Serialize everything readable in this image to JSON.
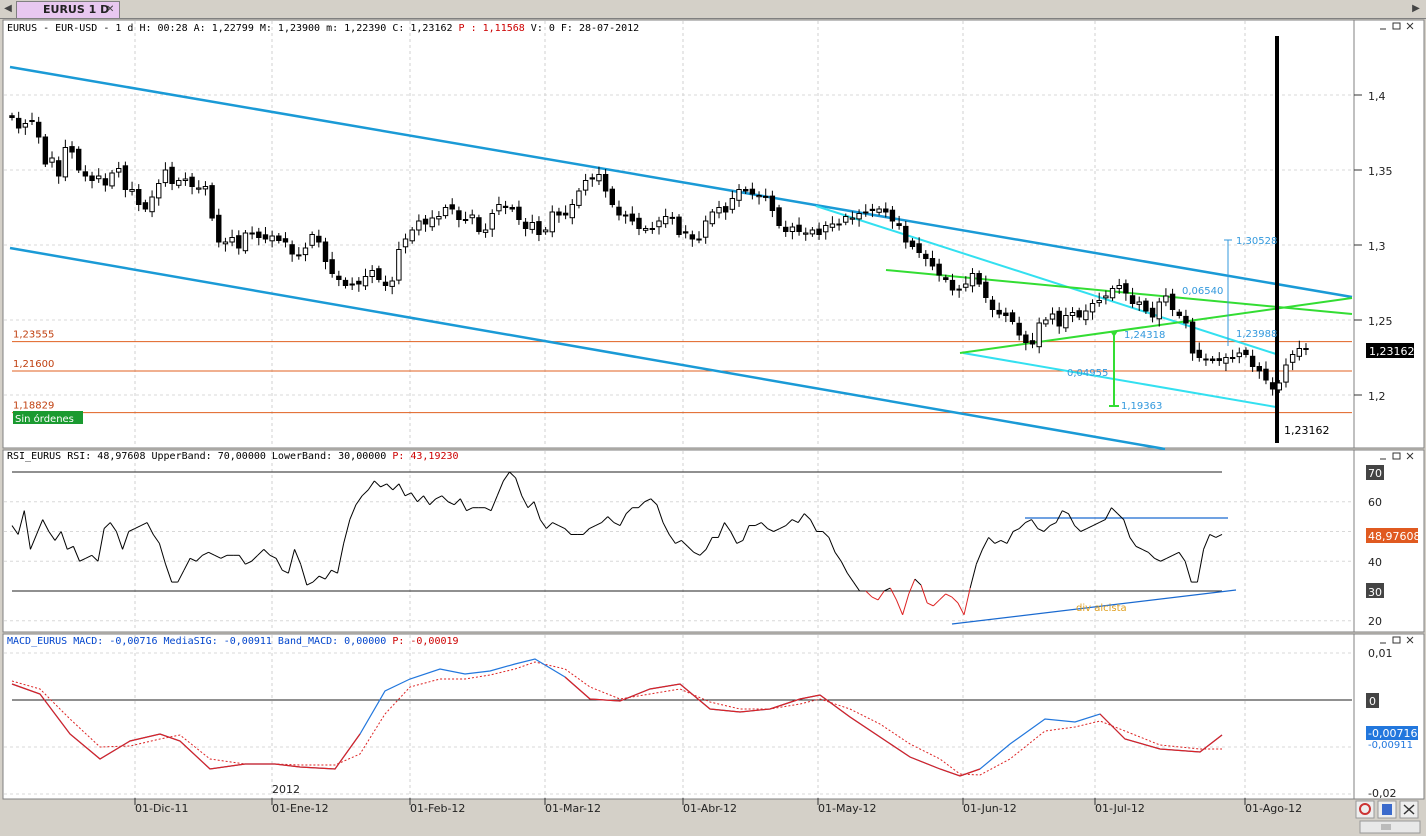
{
  "tab": {
    "nav_left": "◀",
    "nav_right": "▶",
    "title": "EURUS 1 D",
    "close": "✕"
  },
  "price_header": [
    {
      "text": "EURUS - EUR-USD -  1 d H: 00:28 A: 1,22799 M: 1,23900 m: 1,22390 C: 1,23162 ",
      "color": "#000000"
    },
    {
      "text": "P : 1,11568 ",
      "color": "#cc0000"
    },
    {
      "text": "V: 0 F: 28-07-2012",
      "color": "#000000"
    }
  ],
  "rsi_header": [
    {
      "text": "RSI_EURUS RSI: 48,97608 UpperBand: 70,00000 LowerBand: 30,00000 ",
      "color": "#000000"
    },
    {
      "text": "P: 43,19230",
      "color": "#cc0000"
    }
  ],
  "macd_header": [
    {
      "text": "MACD_EURUS MACD: -0,00716 MediaSIG: -0,00911 Band_MACD: 0,00000 ",
      "color": "#0044cc"
    },
    {
      "text": "P: -0,00019",
      "color": "#cc0000"
    }
  ],
  "price_axis": [
    "1,4",
    "1,35",
    "1,3",
    "1,25",
    "1,2"
  ],
  "rsi_axis": [
    "70",
    "60",
    "50",
    "40",
    "30",
    "20"
  ],
  "macd_axis": [
    "0,01",
    "0",
    "-0,01",
    "-0,02"
  ],
  "current_price_label": "1,23162",
  "current_price_bottom_label": "1,23162",
  "rsi_current_label": "48,97608",
  "macd_current_label": "-0,00716",
  "macd_sig_label": "-0,00911",
  "hlines": [
    {
      "label": "1,23555",
      "value": 1.23555
    },
    {
      "label": "1,21600",
      "value": 1.216
    },
    {
      "label": "1,18829",
      "value": 1.18829
    }
  ],
  "sin_ordenes": "Sin órdenes",
  "annotations": {
    "target_up": "1,30528",
    "dist_up": "0,06540",
    "level_mid": "1,23988",
    "level_green": "1,24318",
    "dist_down": "0,04955",
    "target_down": "1,19363",
    "divergence": "div alcista"
  },
  "year_label": "2012",
  "x_ticks": [
    "01-Dic-11",
    "01-Ene-12",
    "01-Feb-12",
    "01-Mar-12",
    "01-Abr-12",
    "01-May-12",
    "01-Jun-12",
    "01-Jul-12",
    "01-Ago-12"
  ],
  "colors": {
    "channel": "#1a9ad6",
    "cyan": "#33e0f0",
    "green": "#33dd33",
    "orange_line": "#e06020",
    "rsi_up": "#000000",
    "rsi_down": "#dd2222",
    "macd": "#2277dd",
    "signal": "#dd2222"
  },
  "chart_data": [
    {
      "type": "candlestick",
      "title": "EURUS - EUR-USD 1 d",
      "ylim": [
        1.165,
        1.44
      ],
      "x_ticks": [
        "01-Dic-11",
        "01-Ene-12",
        "01-Feb-12",
        "01-Mar-12",
        "01-Abr-12",
        "01-May-12",
        "01-Jun-12",
        "01-Jul-12",
        "01-Ago-12"
      ],
      "close_path": [
        1.385,
        1.378,
        1.381,
        1.383,
        1.372,
        1.354,
        1.358,
        1.346,
        1.365,
        1.362,
        1.35,
        1.346,
        1.343,
        1.346,
        1.34,
        1.348,
        1.351,
        1.337,
        1.337,
        1.327,
        1.324,
        1.332,
        1.341,
        1.35,
        1.341,
        1.343,
        1.344,
        1.339,
        1.338,
        1.339,
        1.318,
        1.302,
        1.302,
        1.305,
        1.298,
        1.308,
        1.308,
        1.305,
        1.304,
        1.306,
        1.303,
        1.302,
        1.294,
        1.293,
        1.298,
        1.307,
        1.302,
        1.289,
        1.281,
        1.277,
        1.273,
        1.274,
        1.274,
        1.279,
        1.283,
        1.277,
        1.273,
        1.276,
        1.297,
        1.304,
        1.31,
        1.316,
        1.314,
        1.318,
        1.319,
        1.325,
        1.324,
        1.317,
        1.317,
        1.32,
        1.309,
        1.31,
        1.321,
        1.327,
        1.325,
        1.324,
        1.317,
        1.311,
        1.315,
        1.307,
        1.31,
        1.322,
        1.32,
        1.32,
        1.327,
        1.336,
        1.343,
        1.344,
        1.347,
        1.336,
        1.327,
        1.32,
        1.32,
        1.316,
        1.311,
        1.311,
        1.311,
        1.316,
        1.319,
        1.318,
        1.307,
        1.308,
        1.304,
        1.304,
        1.316,
        1.322,
        1.325,
        1.322,
        1.331,
        1.337,
        1.336,
        1.334,
        1.333,
        1.332,
        1.323,
        1.313,
        1.309,
        1.312,
        1.309,
        1.308,
        1.31,
        1.307,
        1.313,
        1.314,
        1.314,
        1.319,
        1.318,
        1.321,
        1.322,
        1.323,
        1.324,
        1.322,
        1.316,
        1.313,
        1.302,
        1.299,
        1.295,
        1.291,
        1.286,
        1.28,
        1.277,
        1.27,
        1.27,
        1.274,
        1.281,
        1.274,
        1.265,
        1.257,
        1.254,
        1.253,
        1.249,
        1.24,
        1.235,
        1.234,
        1.248,
        1.25,
        1.254,
        1.246,
        1.253,
        1.255,
        1.252,
        1.256,
        1.261,
        1.263,
        1.266,
        1.271,
        1.273,
        1.268,
        1.261,
        1.262,
        1.256,
        1.252,
        1.262,
        1.266,
        1.257,
        1.253,
        1.248,
        1.228,
        1.225,
        1.224,
        1.223,
        1.223,
        1.225,
        1.225,
        1.228,
        1.227,
        1.219,
        1.216,
        1.21,
        1.204,
        1.208,
        1.22,
        1.227,
        1.231,
        1.231
      ],
      "series": [
        {
          "name": "EURUS",
          "last": 1.23162
        }
      ]
    },
    {
      "type": "line",
      "title": "RSI_EURUS",
      "ylim": [
        15,
        73
      ],
      "values": [
        52,
        49,
        57,
        44,
        49,
        54,
        50,
        47,
        50,
        44,
        45,
        40,
        41,
        42,
        40,
        51,
        53,
        50,
        44,
        50,
        51,
        52,
        53,
        49,
        46,
        39,
        33,
        33,
        37,
        41,
        40,
        42,
        43,
        42,
        41,
        42,
        42,
        42,
        39,
        40,
        42,
        44,
        42,
        41,
        37,
        36,
        44,
        39,
        32,
        33,
        35,
        34,
        37,
        36,
        46,
        54,
        59,
        62,
        64,
        67,
        65,
        66,
        64,
        66,
        62,
        63,
        60,
        62,
        59,
        61,
        62,
        60,
        59,
        61,
        57,
        58,
        58,
        58,
        57,
        62,
        67,
        70,
        68,
        62,
        58,
        60,
        54,
        51,
        53,
        52,
        51,
        49,
        49,
        49,
        51,
        52,
        53,
        55,
        53,
        52,
        56,
        58,
        58,
        60,
        61,
        59,
        53,
        49,
        46,
        47,
        45,
        43,
        42,
        44,
        48,
        48,
        53,
        50,
        46,
        47,
        52,
        52,
        53,
        51,
        50,
        51,
        52,
        54,
        53,
        56,
        54,
        50,
        50,
        48,
        43,
        40,
        36,
        33,
        30,
        30,
        28,
        27,
        30,
        31,
        27,
        22,
        29,
        34,
        32,
        26,
        25,
        27,
        29,
        28,
        26,
        22,
        31,
        39,
        44,
        48,
        46,
        47,
        46,
        50,
        51,
        53,
        54,
        51,
        50,
        52,
        53,
        57,
        56,
        52,
        50,
        51,
        52,
        53,
        54,
        58,
        56,
        54,
        48,
        45,
        44,
        43,
        41,
        40,
        41,
        42,
        43,
        40,
        33,
        33,
        44,
        49,
        48,
        49
      ],
      "series": [
        {
          "name": "RSI",
          "last": 48.97608
        }
      ]
    },
    {
      "type": "line",
      "title": "MACD_EURUS",
      "ylim": [
        -0.02,
        0.012
      ],
      "series": [
        {
          "name": "MACD",
          "last": -0.00716
        },
        {
          "name": "MediaSIG",
          "last": -0.00911
        }
      ]
    }
  ]
}
